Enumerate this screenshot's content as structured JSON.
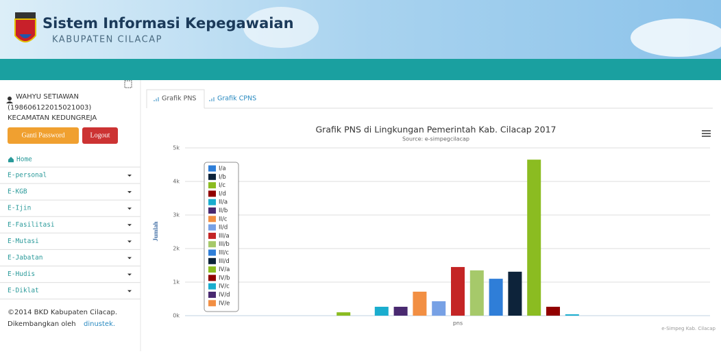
{
  "header": {
    "title": "Sistem Informasi Kepegawaian",
    "subtitle": "KABUPATEN CILACAP"
  },
  "user": {
    "name": "WAHYU SETIAWAN",
    "id": "(198606122015021003)",
    "unit": "KECAMATAN KEDUNGREJA"
  },
  "buttons": [
    "Ganti Password",
    "Logout"
  ],
  "home": "Home",
  "menu": [
    "E-personal",
    "E-KGB",
    "E-Ijin",
    "E-Fasilitasi",
    "E-Mutasi",
    "E-Jabatan",
    "E-Hudis",
    "E-Diklat"
  ],
  "footer": {
    "line1": "©2014 BKD Kabupaten Cilacap.",
    "prefix": "Dikembangkan oleh",
    "link": "dinustek."
  },
  "tabs": [
    "Grafik PNS",
    "Grafik CPNS"
  ],
  "chart_data": {
    "type": "bar",
    "title": "Grafik PNS di Lingkungan Pemerintah Kab. Cilacap 2017",
    "subtitle": "Source: e-simpegcilacap",
    "y_label": "Jumlah",
    "credits": "e-Simpeg Kab. Cilacap",
    "categories": [
      "pns"
    ],
    "ylim": [
      0,
      5000
    ],
    "yticks": [
      {
        "value": 0,
        "label": "0k"
      },
      {
        "value": 1000,
        "label": "1k"
      },
      {
        "value": 2000,
        "label": "2k"
      },
      {
        "value": 3000,
        "label": "3k"
      },
      {
        "value": 4000,
        "label": "4k"
      },
      {
        "value": 5000,
        "label": "5k"
      }
    ],
    "grid": true,
    "legend": "top-left",
    "series": [
      {
        "name": "I/a",
        "color": "#2f7ed8",
        "values": [
          0
        ]
      },
      {
        "name": "I/b",
        "color": "#0d233a",
        "values": [
          0
        ]
      },
      {
        "name": "I/c",
        "color": "#8bbc21",
        "values": [
          100
        ]
      },
      {
        "name": "I/d",
        "color": "#910000",
        "values": [
          0
        ]
      },
      {
        "name": "II/a",
        "color": "#1aadce",
        "values": [
          265
        ]
      },
      {
        "name": "II/b",
        "color": "#492970",
        "values": [
          265
        ]
      },
      {
        "name": "II/c",
        "color": "#f28f43",
        "values": [
          715
        ]
      },
      {
        "name": "II/d",
        "color": "#77a1e5",
        "values": [
          430
        ]
      },
      {
        "name": "III/a",
        "color": "#c42525",
        "values": [
          1450
        ]
      },
      {
        "name": "III/b",
        "color": "#a6c96a",
        "values": [
          1350
        ]
      },
      {
        "name": "III/c",
        "color": "#2f7ed8",
        "values": [
          1100
        ]
      },
      {
        "name": "III/d",
        "color": "#0d233a",
        "values": [
          1310
        ]
      },
      {
        "name": "IV/a",
        "color": "#8bbc21",
        "values": [
          4650
        ]
      },
      {
        "name": "IV/b",
        "color": "#910000",
        "values": [
          265
        ]
      },
      {
        "name": "IV/c",
        "color": "#1aadce",
        "values": [
          40
        ]
      },
      {
        "name": "IV/d",
        "color": "#492970",
        "values": [
          0
        ]
      },
      {
        "name": "IV/e",
        "color": "#f28f43",
        "values": [
          0
        ]
      }
    ]
  }
}
